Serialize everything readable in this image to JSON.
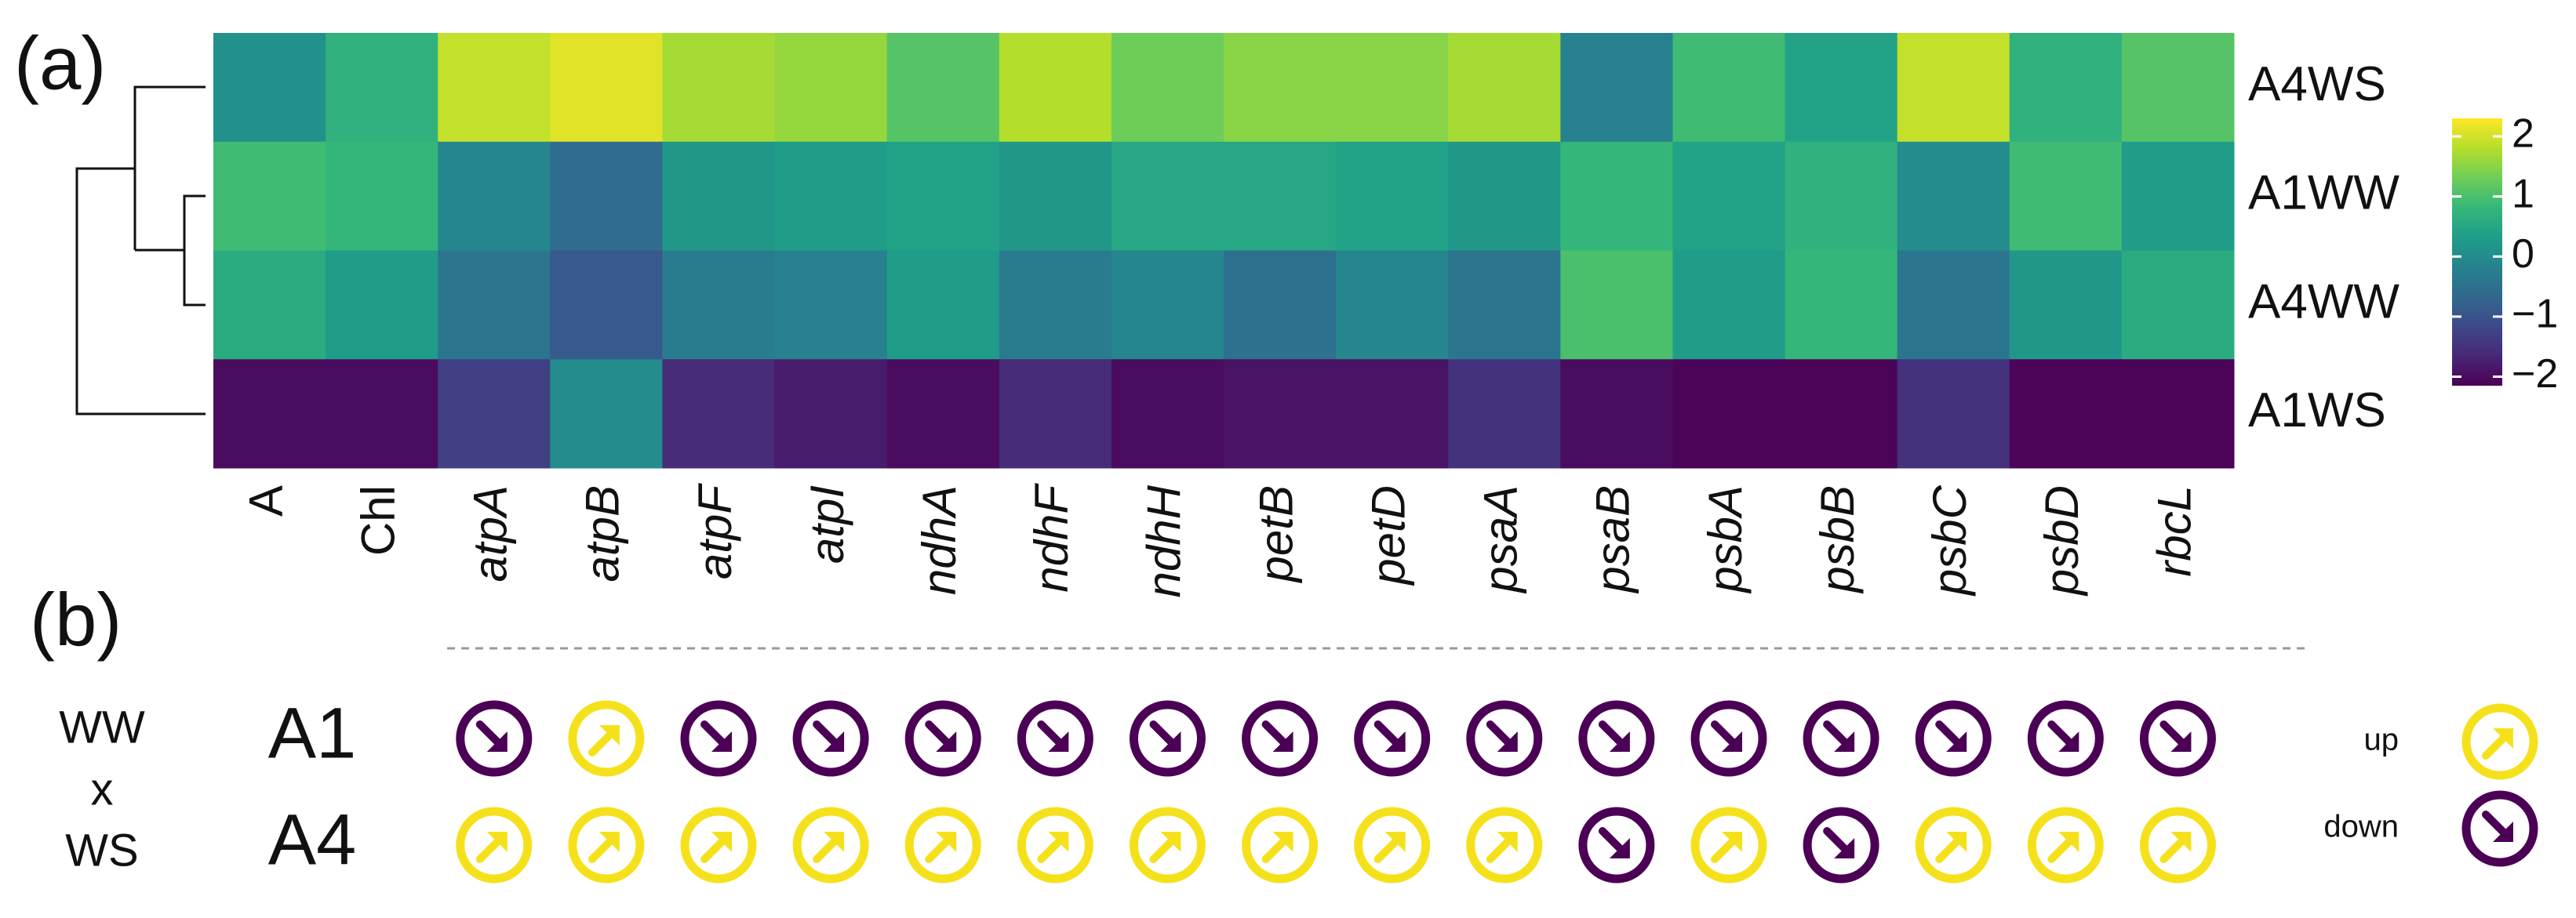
{
  "panel_labels": [
    "(a)",
    "(b)"
  ],
  "chart_data": {
    "type": "heatmap",
    "categories": [
      "A",
      "Chl",
      "atpA",
      "atpB",
      "atpF",
      "atpI",
      "ndhA",
      "ndhF",
      "ndhH",
      "petB",
      "petD",
      "psaA",
      "psaB",
      "psbA",
      "psbB",
      "psbC",
      "psbD",
      "rbcL"
    ],
    "italic": [
      false,
      false,
      true,
      true,
      true,
      true,
      true,
      true,
      true,
      true,
      true,
      true,
      true,
      true,
      true,
      true,
      true,
      true
    ],
    "rows": [
      "A4WS",
      "A1WW",
      "A4WW",
      "A1WS"
    ],
    "values": [
      [
        0.1,
        0.7,
        1.9,
        2.1,
        1.7,
        1.6,
        1.1,
        1.8,
        1.3,
        1.5,
        1.5,
        1.7,
        -0.2,
        0.9,
        0.4,
        1.9,
        0.7,
        1.1
      ],
      [
        0.9,
        0.8,
        -0.1,
        -0.6,
        0.2,
        0.3,
        0.4,
        0.2,
        0.5,
        0.5,
        0.4,
        0.2,
        0.8,
        0.4,
        0.7,
        0,
        0.9,
        0.3
      ],
      [
        0.6,
        0.3,
        -0.4,
        -0.9,
        -0.3,
        -0.2,
        0.3,
        -0.3,
        -0.1,
        -0.5,
        -0.1,
        -0.4,
        1.0,
        0.3,
        0.8,
        -0.4,
        0.2,
        0.6
      ],
      [
        -2,
        -2,
        -1.3,
        0,
        -1.6,
        -1.8,
        -2,
        -1.6,
        -2,
        -1.9,
        -1.9,
        -1.5,
        -2,
        -2.1,
        -2.1,
        -1.5,
        -2.1,
        -2.1
      ]
    ],
    "colormap": [
      "#4b0055",
      "#472877",
      "#3e4989",
      "#31688e",
      "#26828e",
      "#1f9e89",
      "#35b779",
      "#6ece58",
      "#b5de2b",
      "#fde725"
    ],
    "zlim": [
      -2.15,
      2.3
    ],
    "zticks": [
      2,
      1,
      0,
      {
        "value": -1,
        "label": "−1"
      },
      {
        "value": -2,
        "label": "−2"
      }
    ]
  },
  "arrows": {
    "group_label": [
      "WW",
      "x",
      "WS"
    ],
    "colors": {
      "up": "#f5e11b",
      "down": "#4b0055"
    },
    "rows": [
      {
        "name": "A1",
        "directions": [
          "down",
          "up",
          "down",
          "down",
          "down",
          "down",
          "down",
          "down",
          "down",
          "down",
          "down",
          "down",
          "down",
          "down",
          "down",
          "down"
        ]
      },
      {
        "name": "A4",
        "directions": [
          "up",
          "up",
          "up",
          "up",
          "up",
          "up",
          "up",
          "up",
          "up",
          "up",
          "down",
          "up",
          "down",
          "up",
          "up",
          "up"
        ]
      }
    ],
    "legend": [
      "up",
      "down"
    ]
  }
}
